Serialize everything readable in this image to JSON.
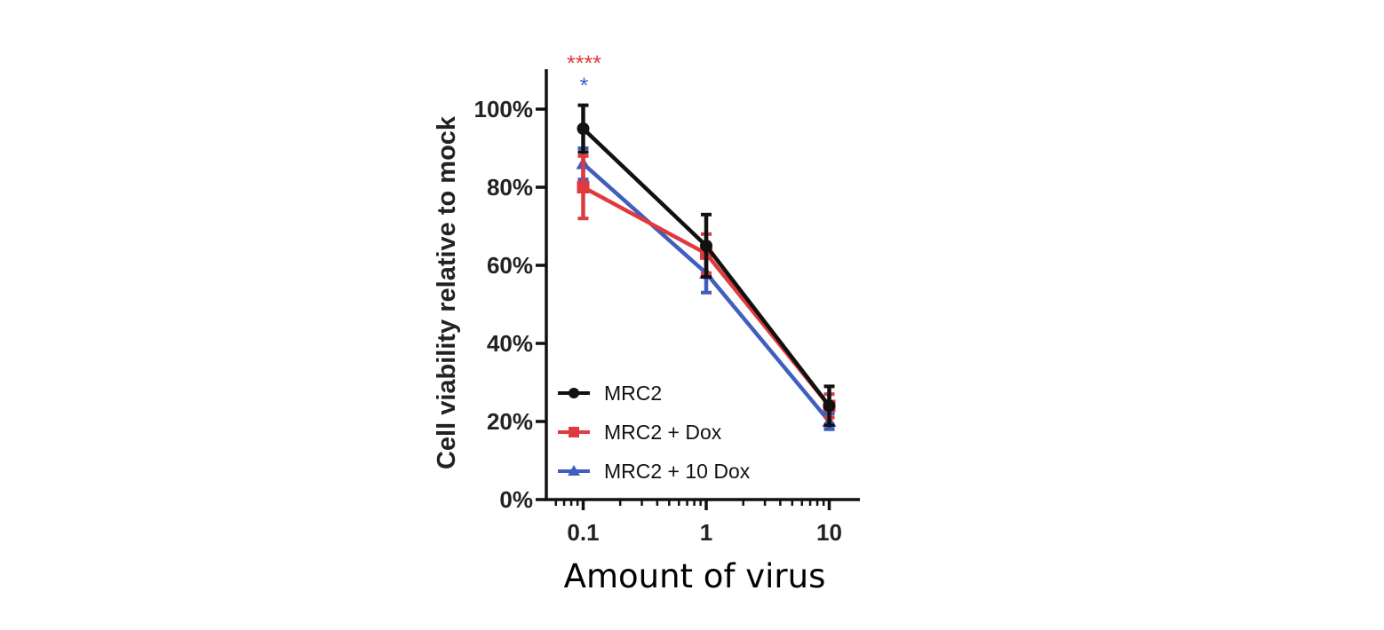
{
  "chart_data": {
    "type": "line",
    "xlabel": "Amount of virus",
    "ylabel": "Cell viability relative to mock",
    "xscale": "log",
    "xlim": [
      0.06,
      20
    ],
    "ylim": [
      0,
      100
    ],
    "grid": false,
    "legend_position": "bottom-left",
    "x": [
      0.1,
      1,
      10
    ],
    "x_tick_labels": [
      "0.1",
      "1",
      "10"
    ],
    "y_ticks": [
      0,
      20,
      40,
      60,
      80,
      100
    ],
    "y_tick_labels": [
      "0%",
      "20%",
      "40%",
      "60%",
      "80%",
      "100%"
    ],
    "series": [
      {
        "name": "MRC2",
        "color": "#111111",
        "marker": "circle",
        "values": [
          95,
          65,
          24
        ],
        "error": [
          6,
          8,
          5
        ]
      },
      {
        "name": "MRC2 + Dox",
        "color": "#e0393e",
        "marker": "square",
        "values": [
          80,
          63,
          24
        ],
        "error": [
          8,
          5,
          3
        ]
      },
      {
        "name": "MRC2 + 10 Dox",
        "color": "#3f5fbf",
        "marker": "triangle",
        "values": [
          86,
          58,
          20
        ],
        "error": [
          4,
          5,
          2
        ]
      }
    ],
    "annotations": [
      {
        "text": "****",
        "x": 0.1,
        "color": "#e0393e"
      },
      {
        "text": "*",
        "x": 0.1,
        "color": "#3f5fbf"
      }
    ]
  }
}
